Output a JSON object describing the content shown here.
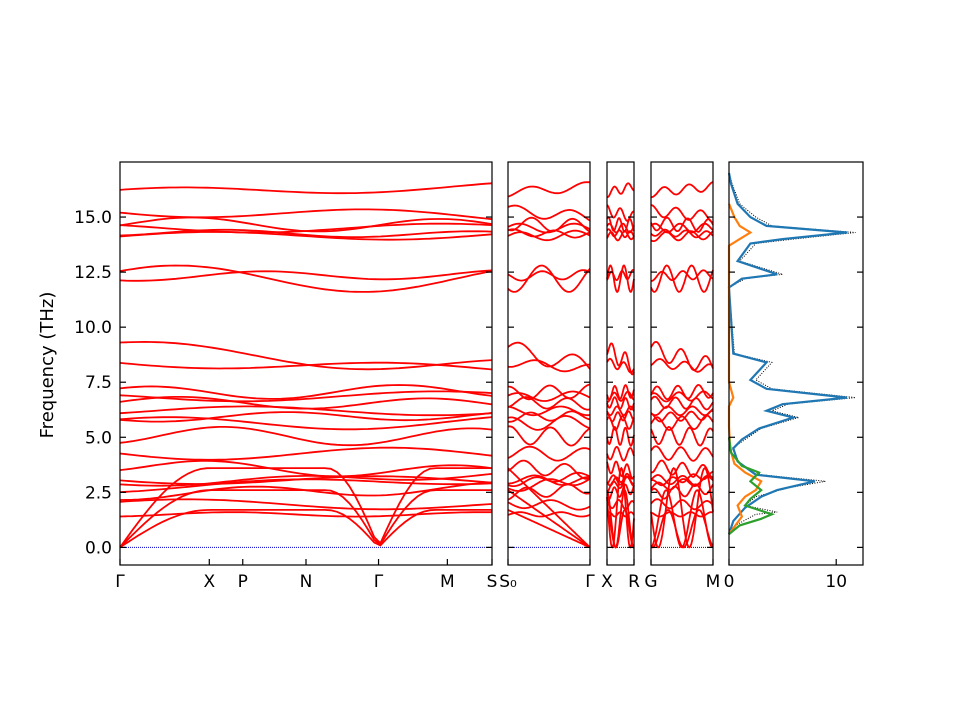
{
  "chart_data": {
    "type": "line",
    "ylabel": "Frequency (THz)",
    "ylim": [
      -0.8,
      17.5
    ],
    "yticks": [
      "0.0",
      "2.5",
      "5.0",
      "7.5",
      "10.0",
      "12.5",
      "15.0"
    ],
    "band_color": "#ff0000",
    "zero_line_color": "#0000cc",
    "segments": [
      {
        "labels": [
          "Γ",
          "X",
          "P",
          "N",
          "Γ",
          "M",
          "S"
        ],
        "positions": [
          0,
          0.24,
          0.33,
          0.5,
          0.695,
          0.88,
          1.0
        ]
      },
      {
        "labels": [
          "S₀",
          "Γ"
        ],
        "positions": [
          0,
          1.0
        ]
      },
      {
        "labels": [
          "X",
          "R"
        ],
        "positions": [
          0,
          1.0
        ]
      },
      {
        "labels": [
          "G",
          "M"
        ],
        "positions": [
          0,
          1.0
        ]
      }
    ],
    "dos": {
      "xlim": [
        0,
        12.5
      ],
      "xticks": [
        "0",
        "10"
      ],
      "series": [
        {
          "name": "total",
          "color": "#000000",
          "style": "dotted",
          "points": [
            [
              0.0,
              0.6
            ],
            [
              0.6,
              1.0
            ],
            [
              2.5,
              1.5
            ],
            [
              4.5,
              1.6
            ],
            [
              1.5,
              1.9
            ],
            [
              2.5,
              2.3
            ],
            [
              5.5,
              2.7
            ],
            [
              9.0,
              3.0
            ],
            [
              3.0,
              3.3
            ],
            [
              1.0,
              3.8
            ],
            [
              0.3,
              4.5
            ],
            [
              1.5,
              4.9
            ],
            [
              3.0,
              5.4
            ],
            [
              6.5,
              5.9
            ],
            [
              4.0,
              6.2
            ],
            [
              5.5,
              6.5
            ],
            [
              11.8,
              6.8
            ],
            [
              4.0,
              7.2
            ],
            [
              2.5,
              7.6
            ],
            [
              4.0,
              8.4
            ],
            [
              0.5,
              8.8
            ],
            [
              0.0,
              11.8
            ],
            [
              1.5,
              12.2
            ],
            [
              5.0,
              12.4
            ],
            [
              1.0,
              13.0
            ],
            [
              2.5,
              13.8
            ],
            [
              6.0,
              14.0
            ],
            [
              11.8,
              14.3
            ],
            [
              4.0,
              14.6
            ],
            [
              2.5,
              15.0
            ],
            [
              1.0,
              15.6
            ],
            [
              0.3,
              16.5
            ],
            [
              0.0,
              17.0
            ]
          ]
        },
        {
          "name": "blue",
          "color": "#1f77b4",
          "style": "solid",
          "points": [
            [
              0.0,
              0.6
            ],
            [
              0.4,
              1.2
            ],
            [
              1.5,
              1.8
            ],
            [
              3.0,
              2.3
            ],
            [
              4.5,
              2.6
            ],
            [
              8.0,
              3.0
            ],
            [
              2.5,
              3.3
            ],
            [
              0.8,
              3.9
            ],
            [
              0.4,
              4.5
            ],
            [
              1.2,
              4.9
            ],
            [
              2.8,
              5.4
            ],
            [
              6.0,
              5.9
            ],
            [
              3.5,
              6.2
            ],
            [
              5.0,
              6.5
            ],
            [
              11.0,
              6.8
            ],
            [
              3.5,
              7.2
            ],
            [
              2.0,
              7.6
            ],
            [
              3.5,
              8.4
            ],
            [
              0.4,
              8.8
            ],
            [
              0.0,
              11.8
            ],
            [
              1.2,
              12.2
            ],
            [
              4.5,
              12.4
            ],
            [
              0.8,
              13.0
            ],
            [
              2.0,
              13.8
            ],
            [
              5.0,
              14.0
            ],
            [
              11.0,
              14.3
            ],
            [
              3.5,
              14.6
            ],
            [
              2.0,
              15.0
            ],
            [
              0.8,
              15.6
            ],
            [
              0.2,
              16.5
            ],
            [
              0.0,
              17.0
            ]
          ]
        },
        {
          "name": "orange",
          "color": "#ff7f0e",
          "style": "solid",
          "points": [
            [
              0.0,
              0.6
            ],
            [
              0.6,
              1.0
            ],
            [
              1.2,
              1.4
            ],
            [
              0.8,
              1.9
            ],
            [
              1.5,
              2.3
            ],
            [
              2.5,
              2.6
            ],
            [
              3.0,
              3.0
            ],
            [
              1.5,
              3.4
            ],
            [
              0.5,
              3.8
            ],
            [
              0.1,
              4.5
            ],
            [
              0.0,
              5.5
            ],
            [
              0.0,
              6.4
            ],
            [
              0.4,
              6.8
            ],
            [
              0.0,
              7.5
            ],
            [
              0.0,
              13.7
            ],
            [
              1.0,
              14.0
            ],
            [
              2.0,
              14.3
            ],
            [
              1.0,
              14.6
            ],
            [
              0.5,
              15.0
            ],
            [
              0.0,
              15.6
            ]
          ]
        },
        {
          "name": "green",
          "color": "#2ca02c",
          "style": "solid",
          "points": [
            [
              0.0,
              0.6
            ],
            [
              1.0,
              1.0
            ],
            [
              3.0,
              1.3
            ],
            [
              4.0,
              1.5
            ],
            [
              1.5,
              1.9
            ],
            [
              2.0,
              2.2
            ],
            [
              3.0,
              2.6
            ],
            [
              2.0,
              3.0
            ],
            [
              2.8,
              3.4
            ],
            [
              1.2,
              3.7
            ],
            [
              0.2,
              4.3
            ],
            [
              0.0,
              5.0
            ]
          ]
        }
      ]
    }
  }
}
